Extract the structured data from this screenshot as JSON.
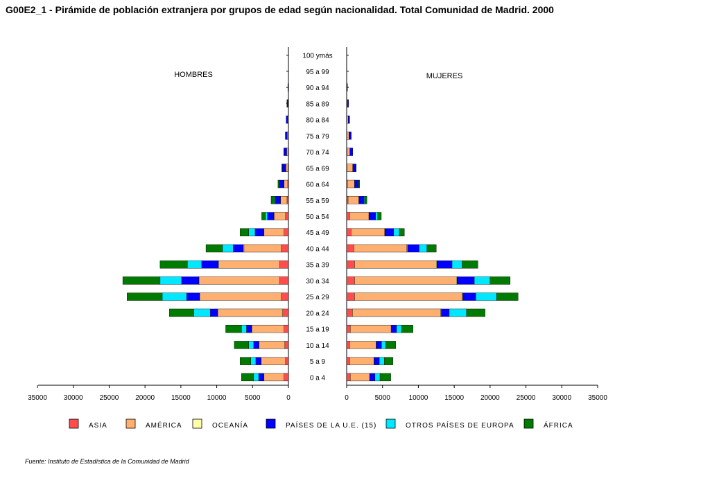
{
  "title": "G00E2_1 - Pirámide de población extranjera por grupos de edad según nacionalidad. Total Comunidad de Madrid. 2000",
  "source": "Fuente: Instituto de Estadística de la Comunidad de Madrid",
  "chart_data": {
    "type": "bar",
    "orientation": "horizontal-population-pyramid",
    "stacked": true,
    "panels": [
      "HOMBRES",
      "MUJERES"
    ],
    "categories": [
      "0 a 4",
      "5 a 9",
      "10 a 14",
      "15 a 19",
      "20 a 24",
      "25 a 29",
      "30 a 34",
      "35 a 39",
      "40 a  44",
      "45 a 49",
      "50 a 54",
      "55 a 59",
      "60 a 64",
      "65 a 69",
      "70 a 74",
      "75 a 79",
      "80 a 84",
      "85 a 89",
      "90 a 94",
      "95 a 99",
      "100 ymás"
    ],
    "xlim": [
      0,
      35000
    ],
    "xticks": [
      0,
      5000,
      10000,
      15000,
      20000,
      25000,
      30000,
      35000
    ],
    "xtick_labels": [
      "0",
      "5000",
      "10000",
      "15000",
      "20000",
      "25000",
      "30000",
      "35000"
    ],
    "legend_position": "bottom",
    "colors": {
      "ASIA": "#ff4d4d",
      "AMÉRICA": "#ffb070",
      "OCEANÍA": "#ffffa8",
      "PAÍSES DE LA U.E. (15)": "#0000ff",
      "OTROS PAÍSES DE EUROPA": "#00e8ff",
      "ÁFRICA": "#007a00"
    },
    "series": [
      {
        "name": "ASIA",
        "hombres": [
          600,
          400,
          500,
          600,
          800,
          1000,
          1200,
          1200,
          1000,
          600,
          400,
          200,
          100,
          50,
          50,
          30,
          20,
          10,
          0,
          0,
          0
        ],
        "mujeres": [
          500,
          400,
          400,
          500,
          800,
          1100,
          1100,
          1100,
          1000,
          600,
          400,
          200,
          100,
          50,
          50,
          30,
          20,
          10,
          0,
          0,
          0
        ]
      },
      {
        "name": "AMÉRICA",
        "hombres": [
          2800,
          3400,
          3600,
          4500,
          9000,
          11300,
          11200,
          8500,
          5200,
          2800,
          1600,
          900,
          500,
          300,
          200,
          150,
          100,
          50,
          20,
          5,
          2
        ],
        "mujeres": [
          2700,
          3400,
          3700,
          5700,
          12300,
          15000,
          14200,
          11400,
          7400,
          4700,
          2700,
          1500,
          1000,
          800,
          400,
          300,
          200,
          100,
          50,
          10,
          5
        ]
      },
      {
        "name": "OCEANÍA",
        "hombres": [
          50,
          50,
          50,
          50,
          100,
          100,
          100,
          100,
          100,
          50,
          30,
          20,
          10,
          5,
          5,
          5,
          0,
          0,
          0,
          0,
          0
        ],
        "mujeres": [
          50,
          50,
          50,
          50,
          100,
          100,
          100,
          100,
          100,
          50,
          30,
          20,
          10,
          5,
          5,
          5,
          0,
          0,
          0,
          0,
          0
        ]
      },
      {
        "name": "PAÍSES DE LA U.E. (15)",
        "hombres": [
          700,
          700,
          700,
          700,
          1000,
          1800,
          2400,
          2300,
          1400,
          1200,
          900,
          700,
          600,
          500,
          400,
          250,
          200,
          150,
          60,
          20,
          10
        ],
        "mujeres": [
          700,
          700,
          700,
          700,
          1100,
          1800,
          2400,
          2100,
          1600,
          1200,
          900,
          700,
          500,
          400,
          400,
          300,
          200,
          150,
          60,
          20,
          10
        ]
      },
      {
        "name": "OTROS PAÍSES DE EUROPA",
        "hombres": [
          700,
          700,
          700,
          700,
          2300,
          3400,
          3000,
          2000,
          1500,
          900,
          300,
          100,
          50,
          20,
          0,
          0,
          0,
          0,
          0,
          0,
          0
        ],
        "mujeres": [
          700,
          700,
          600,
          700,
          2400,
          2900,
          2200,
          1400,
          1100,
          800,
          300,
          100,
          50,
          20,
          0,
          0,
          0,
          0,
          0,
          0,
          0
        ]
      },
      {
        "name": "ÁFRICA",
        "hombres": [
          1700,
          1500,
          2000,
          2200,
          3400,
          4900,
          5200,
          3800,
          2300,
          1200,
          500,
          500,
          200,
          50,
          0,
          0,
          0,
          0,
          0,
          0,
          0
        ],
        "mujeres": [
          1500,
          1200,
          1400,
          1600,
          2600,
          3000,
          2800,
          2200,
          1300,
          700,
          500,
          300,
          150,
          50,
          0,
          0,
          0,
          0,
          0,
          0,
          0
        ]
      }
    ]
  }
}
